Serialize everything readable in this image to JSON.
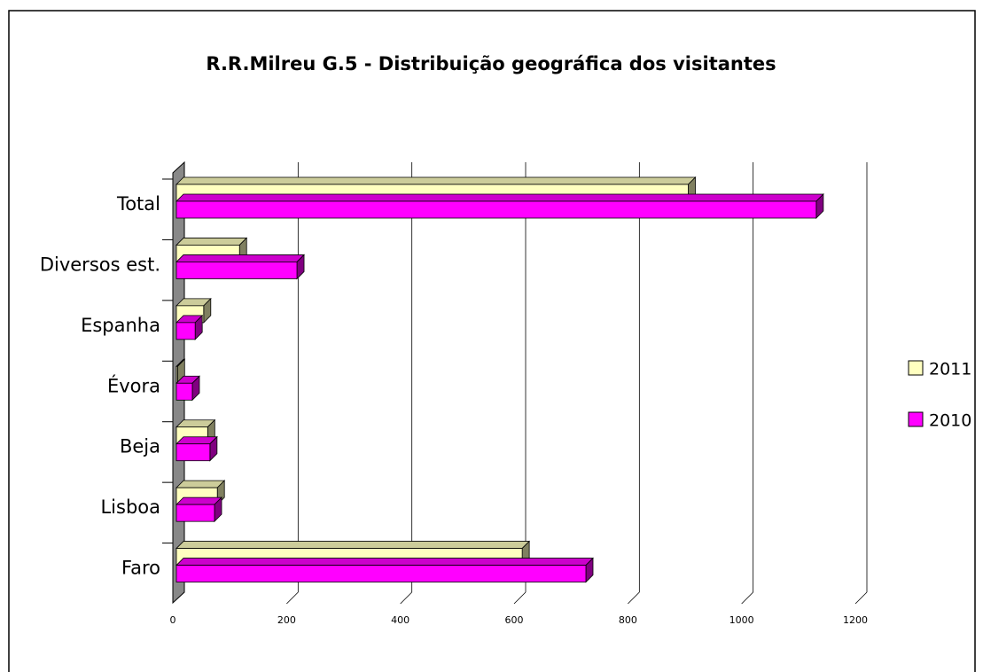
{
  "chart_data": {
    "type": "bar3d_horizontal",
    "title": "R.R.Milreu G.5 - Distribuição geográfica dos visitantes",
    "categories": [
      "Faro",
      "Lisboa",
      "Beja",
      "Évora",
      "Espanha",
      "Diversos est.",
      "Total"
    ],
    "series": [
      {
        "name": "2011",
        "color": "#ffffc0",
        "values": [
          608,
          72,
          55,
          2,
          48,
          111,
          900
        ]
      },
      {
        "name": "2010",
        "color": "#ff00ff",
        "values": [
          720,
          67,
          59,
          28,
          33,
          212,
          1125
        ]
      }
    ],
    "xlim": [
      0,
      1200
    ],
    "xticks": [
      0,
      200,
      400,
      600,
      800,
      1000,
      1200
    ],
    "grid": true,
    "legend": "right"
  }
}
